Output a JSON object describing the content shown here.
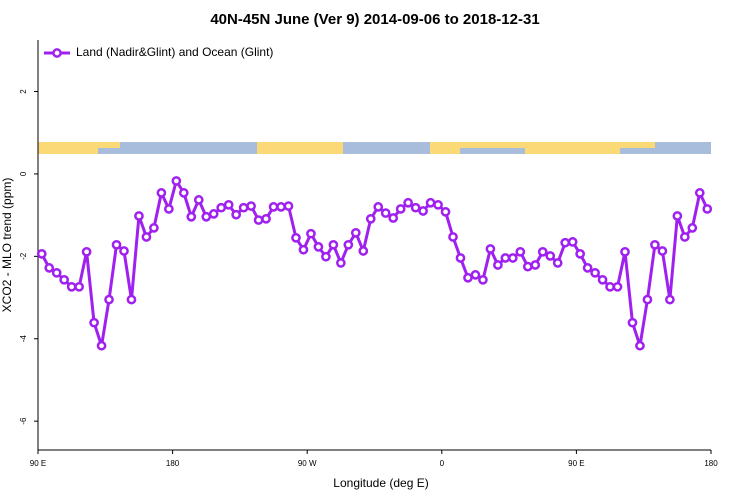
{
  "chart_data": {
    "type": "line",
    "title": "40N-45N June (Ver 9)   2014-09-06 to 2018-12-31",
    "xlabel": "Longitude (deg E)",
    "ylabel": "XCO2 - MLO trend (ppm)",
    "x": [
      92.5,
      97.5,
      102.5,
      107.5,
      112.5,
      117.5,
      122.5,
      127.5,
      132.5,
      137.5,
      142.5,
      147.5,
      152.5,
      157.5,
      162.5,
      167.5,
      172.5,
      177.5,
      182.5,
      187.5,
      192.5,
      197.5,
      202.5,
      207.5,
      212.5,
      217.5,
      222.5,
      227.5,
      232.5,
      237.5,
      242.5,
      247.5,
      252.5,
      257.5,
      262.5,
      267.5,
      272.5,
      277.5,
      282.5,
      287.5,
      292.5,
      297.5,
      302.5,
      307.5,
      312.5,
      317.5,
      322.5,
      327.5,
      332.5,
      337.5,
      342.5,
      347.5,
      352.5,
      357.5,
      362.5,
      367.5,
      372.5,
      377.5,
      382.5,
      387.5,
      392.5,
      397.5,
      402.5,
      407.5,
      412.5,
      417.5,
      422.5,
      427.5,
      432.5,
      437.5,
      442.5,
      447.5,
      452.5,
      457.5,
      462.5,
      467.5,
      472.5,
      477.5,
      482.5,
      487.5,
      492.5,
      497.5,
      502.5,
      507.5,
      512.5,
      517.5,
      522.5,
      527.5,
      532.5,
      537.5
    ],
    "series": [
      {
        "name": "Land (Nadir&Glint) and Ocean (Glint)",
        "color": "#a020f0",
        "values": [
          -1.94,
          -2.28,
          -2.4,
          -2.57,
          -2.74,
          -2.74,
          -1.89,
          -3.61,
          -4.17,
          -3.05,
          -1.72,
          -1.87,
          -3.05,
          -1.02,
          -1.53,
          -1.31,
          -0.46,
          -0.85,
          -0.17,
          -0.46,
          -1.04,
          -0.63,
          -1.04,
          -0.97,
          -0.82,
          -0.75,
          -0.99,
          -0.82,
          -0.78,
          -1.12,
          -1.09,
          -0.8,
          -0.8,
          -0.78,
          -1.55,
          -1.84,
          -1.45,
          -1.77,
          -2.01,
          -1.72,
          -2.16,
          -1.72,
          -1.43,
          -1.87,
          -1.09,
          -0.8,
          -0.95,
          -1.07,
          -0.85,
          -0.7,
          -0.82,
          -0.9,
          -0.7,
          -0.75,
          -0.92,
          -1.53,
          -2.04,
          -2.52,
          -2.45,
          -2.57,
          -1.82,
          -2.21,
          -2.04,
          -2.04,
          -1.89,
          -2.25,
          -2.21,
          -1.89,
          -1.99,
          -2.16,
          -1.67,
          -1.65,
          -1.94,
          -2.28,
          -2.4,
          -2.57,
          -2.74,
          -2.74,
          -1.89,
          -3.61,
          -4.17,
          -3.05,
          -1.72,
          -1.87,
          -3.05,
          -1.02,
          -1.53,
          -1.31,
          -0.46,
          -0.85
        ]
      }
    ],
    "xlim": [
      90,
      540
    ],
    "xticks": [
      {
        "value": 90,
        "label": "90 E"
      },
      180,
      {
        "value": 270,
        "label": "90 W"
      },
      {
        "value": 360,
        "label": "0"
      },
      {
        "value": 450,
        "label": "90 E"
      },
      {
        "value": 540,
        "label": "180"
      }
    ],
    "ylim": [
      -6.7,
      3.25
    ],
    "yticks": [
      -6,
      -4,
      -2,
      0,
      2
    ],
    "legend": "top-left"
  }
}
